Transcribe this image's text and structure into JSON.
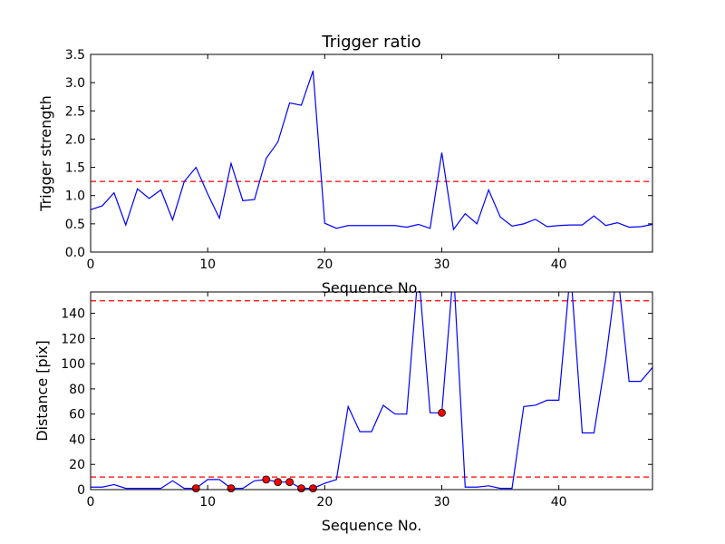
{
  "chart_data": [
    {
      "type": "line",
      "title": "Trigger ratio",
      "xlabel": "Sequence No.",
      "ylabel": "Trigger strength",
      "xlim": [
        0,
        48
      ],
      "ylim": [
        0,
        3.5
      ],
      "xticks": [
        "0",
        "10",
        "20",
        "30",
        "40"
      ],
      "yticks": [
        "0.0",
        "0.5",
        "1.0",
        "1.5",
        "2.0",
        "2.5",
        "3.0",
        "3.5"
      ],
      "grid": false,
      "line_color": "#0000ff",
      "threshold_color": "#ff0000",
      "series": [
        {
          "x": [
            0,
            1,
            2,
            3,
            4,
            5,
            6,
            7,
            8,
            9,
            10,
            11,
            12,
            13,
            14,
            15,
            16,
            17,
            18,
            19,
            20,
            21,
            22,
            23,
            24,
            25,
            26,
            27,
            28,
            29,
            30,
            31,
            32,
            33,
            34,
            35,
            36,
            37,
            38,
            39,
            40,
            41,
            42,
            43,
            44,
            45,
            46,
            47,
            48
          ],
          "values": [
            0.75,
            0.82,
            1.05,
            0.48,
            1.12,
            0.95,
            1.1,
            0.57,
            1.25,
            1.5,
            1.03,
            0.6,
            1.57,
            0.91,
            0.93,
            1.66,
            1.95,
            2.64,
            2.6,
            3.21,
            0.51,
            0.42,
            0.47,
            0.47,
            0.47,
            0.47,
            0.47,
            0.44,
            0.49,
            0.42,
            1.76,
            0.4,
            0.68,
            0.5,
            1.1,
            0.62,
            0.46,
            0.5,
            0.58,
            0.45,
            0.47,
            0.48,
            0.48,
            0.64,
            0.47,
            0.52,
            0.44,
            0.45,
            0.49
          ]
        }
      ],
      "thresholds": [
        1.25
      ]
    },
    {
      "type": "line",
      "xlabel": "Sequence No.",
      "ylabel": "Distance [pix]",
      "xlim": [
        0,
        48
      ],
      "ylim": [
        0,
        157
      ],
      "xticks": [
        "0",
        "10",
        "20",
        "30",
        "40"
      ],
      "yticks": [
        "0",
        "20",
        "40",
        "60",
        "80",
        "100",
        "120",
        "140"
      ],
      "grid": false,
      "line_color": "#0000ff",
      "threshold_color": "#ff0000",
      "marker_color": "#ff0000",
      "series": [
        {
          "x": [
            0,
            1,
            2,
            3,
            4,
            5,
            6,
            7,
            8,
            9,
            10,
            11,
            12,
            13,
            14,
            15,
            16,
            17,
            18,
            19,
            20,
            21,
            22,
            23,
            24,
            25,
            26,
            27,
            28,
            29,
            30,
            31,
            32,
            33,
            34,
            35,
            36,
            37,
            38,
            39,
            40,
            41,
            42,
            43,
            44,
            45,
            46,
            47,
            48
          ],
          "values": [
            2,
            2,
            4,
            1,
            1,
            1,
            1,
            7,
            1,
            1,
            8,
            8,
            1,
            1,
            7,
            8,
            6,
            6,
            1,
            1,
            5,
            8,
            66,
            46,
            46,
            67,
            60,
            60,
            175,
            61,
            61,
            175,
            2,
            2,
            3,
            1,
            1,
            66,
            67,
            71,
            71,
            175,
            45,
            45,
            103,
            175,
            86,
            86,
            97
          ]
        }
      ],
      "markers": {
        "x": [
          9,
          12,
          15,
          16,
          17,
          18,
          19,
          30
        ],
        "values": [
          1,
          1,
          8,
          6,
          6,
          1,
          1,
          61
        ]
      },
      "thresholds": [
        10,
        150
      ]
    }
  ]
}
